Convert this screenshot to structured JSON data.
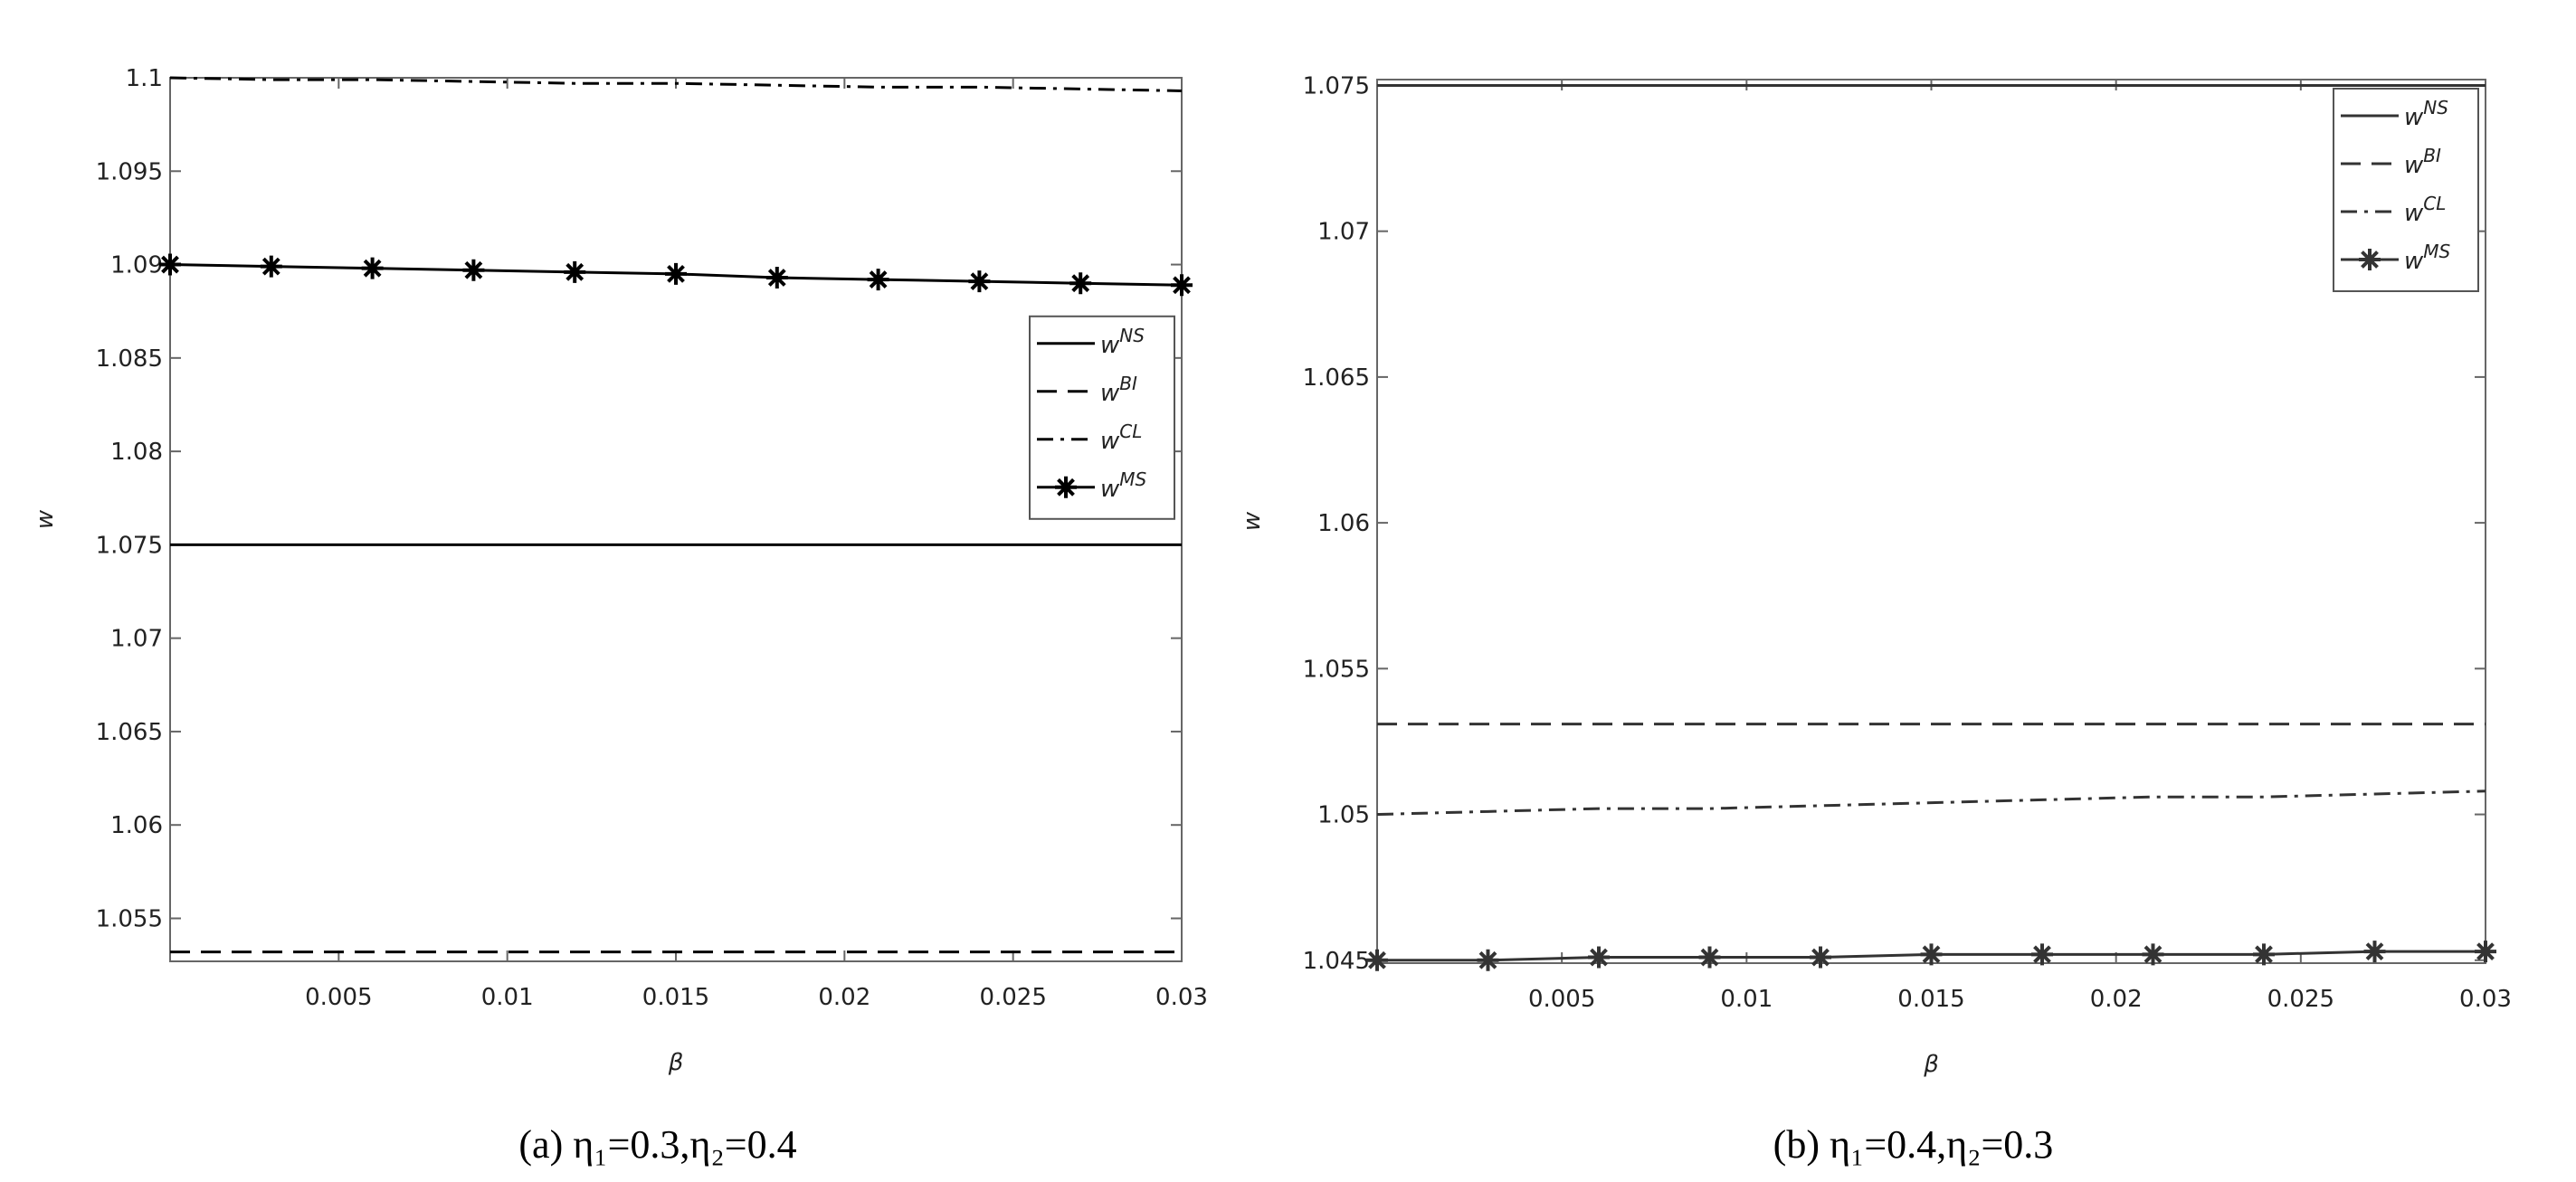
{
  "chart_data": [
    {
      "type": "line",
      "caption": "(a) η₁=0.3,η₂=0.4",
      "xlabel": "β",
      "ylabel": "w",
      "x": [
        0,
        0.003,
        0.006,
        0.009,
        0.012,
        0.015,
        0.018,
        0.021,
        0.024,
        0.027,
        0.03
      ],
      "xlim": [
        0,
        0.03
      ],
      "xticks": [
        0.005,
        0.01,
        0.015,
        0.02,
        0.025,
        0.03
      ],
      "ylim": [
        1.0527,
        1.1
      ],
      "yticks": [
        1.055,
        1.06,
        1.065,
        1.07,
        1.075,
        1.08,
        1.085,
        1.09,
        1.095,
        1.1
      ],
      "legend": "right",
      "series": [
        {
          "name": "wNS",
          "color": "#000000",
          "linestyle": "solid",
          "values": [
            1.075,
            1.075,
            1.075,
            1.075,
            1.075,
            1.075,
            1.075,
            1.075,
            1.075,
            1.075,
            1.075
          ]
        },
        {
          "name": "wBI",
          "color": "#000000",
          "linestyle": "dashed",
          "values": [
            1.0532,
            1.0532,
            1.0532,
            1.0532,
            1.0532,
            1.0532,
            1.0532,
            1.0532,
            1.0532,
            1.0532,
            1.0532
          ]
        },
        {
          "name": "wCL",
          "color": "#000000",
          "linestyle": "dashdot",
          "values": [
            1.1,
            1.0999,
            1.0999,
            1.0998,
            1.0997,
            1.0997,
            1.0996,
            1.0995,
            1.0995,
            1.0994,
            1.0993
          ]
        },
        {
          "name": "wMS",
          "color": "#000000",
          "linestyle": "solid",
          "marker": "*",
          "values": [
            1.09,
            1.0899,
            1.0898,
            1.0897,
            1.0896,
            1.0895,
            1.0893,
            1.0892,
            1.0891,
            1.089,
            1.0889
          ]
        }
      ]
    },
    {
      "type": "line",
      "caption": "(b) η₁=0.4,η₂=0.3",
      "xlabel": "β",
      "ylabel": "w",
      "x": [
        0,
        0.003,
        0.006,
        0.009,
        0.012,
        0.015,
        0.018,
        0.021,
        0.024,
        0.027,
        0.03
      ],
      "xlim": [
        0,
        0.03
      ],
      "xticks": [
        0.005,
        0.01,
        0.015,
        0.02,
        0.025,
        0.03
      ],
      "ylim": [
        1.0449,
        1.0752
      ],
      "yticks": [
        1.045,
        1.05,
        1.055,
        1.06,
        1.065,
        1.07,
        1.075
      ],
      "legend": "upper right",
      "series": [
        {
          "name": "wNS",
          "color": "#333333",
          "linestyle": "solid",
          "values": [
            1.075,
            1.075,
            1.075,
            1.075,
            1.075,
            1.075,
            1.075,
            1.075,
            1.075,
            1.075,
            1.075
          ]
        },
        {
          "name": "wBI",
          "color": "#333333",
          "linestyle": "dashed",
          "values": [
            1.0531,
            1.0531,
            1.0531,
            1.0531,
            1.0531,
            1.0531,
            1.0531,
            1.0531,
            1.0531,
            1.0531,
            1.0531
          ]
        },
        {
          "name": "wCL",
          "color": "#333333",
          "linestyle": "dashdot",
          "values": [
            1.05,
            1.0501,
            1.0502,
            1.0502,
            1.0503,
            1.0504,
            1.0505,
            1.0506,
            1.0506,
            1.0507,
            1.0508
          ]
        },
        {
          "name": "wMS",
          "color": "#333333",
          "linestyle": "solid",
          "marker": "*",
          "values": [
            1.045,
            1.045,
            1.0451,
            1.0451,
            1.0451,
            1.0452,
            1.0452,
            1.0452,
            1.0452,
            1.0453,
            1.0453
          ]
        }
      ]
    }
  ]
}
